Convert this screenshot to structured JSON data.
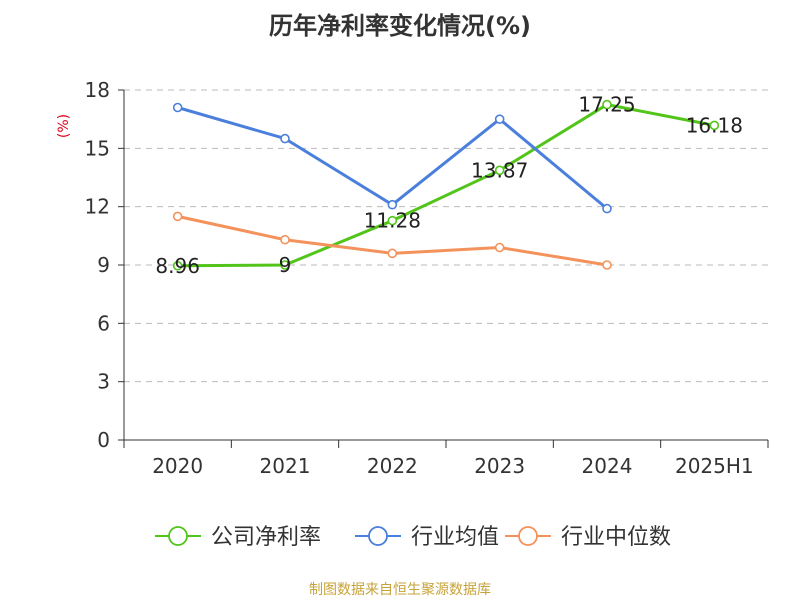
{
  "title": "历年净利率变化情况(%)",
  "unit_label": "(%)",
  "footer": "制图数据来自恒生聚源数据库",
  "colors": {
    "company": "#52c41a",
    "industry_avg": "#4a7fdc",
    "industry_median": "#f4925b",
    "unit": "#e0001b",
    "footer": "#c7a33a",
    "grid": "#bbbbbb",
    "axis": "#333333",
    "text": "#333333"
  },
  "chart_data": {
    "type": "line",
    "title": "历年净利率变化情况(%)",
    "ylabel": "(%)",
    "xlabel": "",
    "categories": [
      "2020",
      "2021",
      "2022",
      "2023",
      "2024",
      "2025H1"
    ],
    "ylim": [
      0,
      18
    ],
    "yticks": [
      0,
      3,
      6,
      9,
      12,
      15,
      18
    ],
    "grid": true,
    "legend_position": "bottom",
    "series": [
      {
        "name": "公司净利率",
        "color": "#52c41a",
        "values": [
          8.96,
          9,
          11.28,
          13.87,
          17.25,
          16.18
        ],
        "labels": [
          "8.96",
          "9",
          "11.28",
          "13.87",
          "17.25",
          "16.18"
        ]
      },
      {
        "name": "行业均值",
        "color": "#4a7fdc",
        "values": [
          17.1,
          15.5,
          12.1,
          16.5,
          11.9,
          null
        ]
      },
      {
        "name": "行业中位数",
        "color": "#f4925b",
        "values": [
          11.5,
          10.3,
          9.6,
          9.9,
          9.0,
          null
        ]
      }
    ]
  }
}
